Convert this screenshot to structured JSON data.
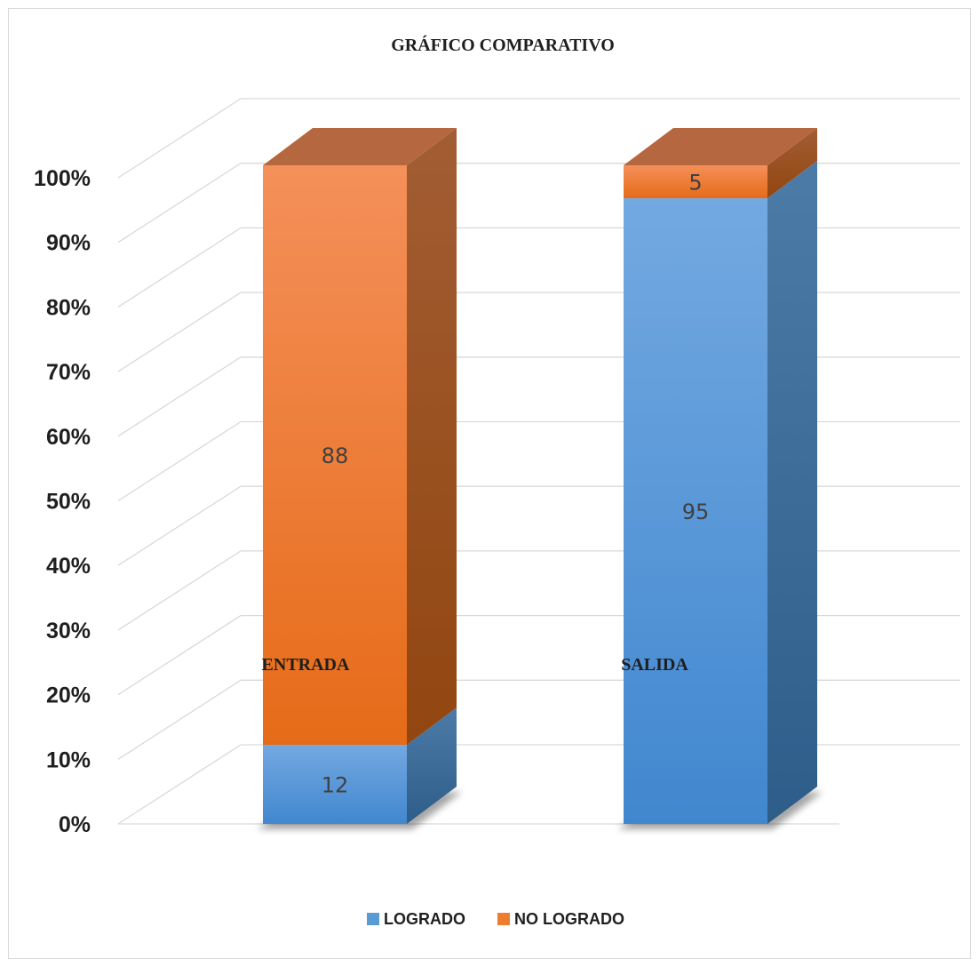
{
  "chart_data": {
    "type": "bar",
    "stacked": true,
    "percent_stacked": true,
    "three_d": true,
    "title": "GRÁFICO COMPARATIVO",
    "categories": [
      "ENTRADA",
      "SALIDA"
    ],
    "series": [
      {
        "name": "LOGRADO",
        "values": [
          12,
          95
        ],
        "color": "#5b9bd5"
      },
      {
        "name": "NO LOGRADO",
        "values": [
          88,
          5
        ],
        "color": "#ed7d31"
      }
    ],
    "y_ticks": [
      "0%",
      "10%",
      "20%",
      "30%",
      "40%",
      "50%",
      "60%",
      "70%",
      "80%",
      "90%",
      "100%"
    ],
    "ylim": [
      0,
      100
    ],
    "grid": true,
    "legend": "bottom"
  }
}
